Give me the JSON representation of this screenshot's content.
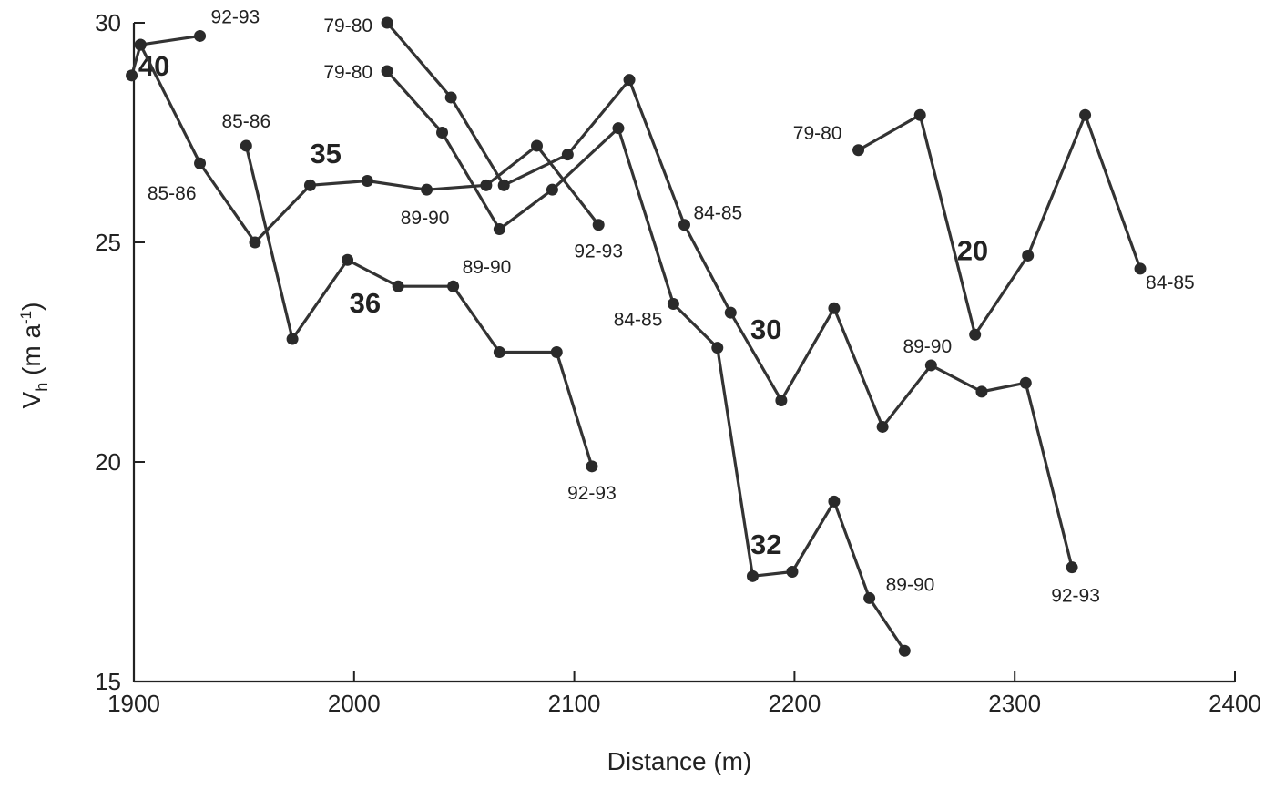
{
  "chart_data": {
    "type": "line",
    "xlabel": "Distance (m)",
    "ylabel": "V",
    "ylabel_sub": "h",
    "ylabel_unit_prefix": " (m a",
    "ylabel_unit_sup": "-1",
    "ylabel_unit_suffix": ")",
    "xlim": [
      1900,
      2400
    ],
    "ylim": [
      15,
      30
    ],
    "xticks": [
      "1900",
      "2000",
      "2100",
      "2200",
      "2300",
      "2400"
    ],
    "yticks": [
      "15",
      "20",
      "25",
      "30"
    ],
    "grid": false,
    "series": [
      {
        "name": "40",
        "x": [
          1899,
          1903,
          1930
        ],
        "y": [
          28.8,
          29.5,
          29.7
        ],
        "point_labels": [
          "",
          "",
          "92-93"
        ]
      },
      {
        "name": "35",
        "x": [
          1903,
          1930,
          1955,
          1980,
          2006,
          2033,
          2060,
          2083,
          2111
        ],
        "y": [
          29.5,
          26.8,
          25.0,
          26.3,
          26.4,
          26.2,
          26.3,
          27.2,
          25.4
        ],
        "point_labels": [
          "",
          "85-86",
          "",
          "",
          "",
          "89-90",
          "",
          "",
          "92-93"
        ]
      },
      {
        "name": "36",
        "x": [
          1951,
          1972,
          1997,
          2020,
          2045,
          2066,
          2092,
          2108
        ],
        "y": [
          27.2,
          22.8,
          24.6,
          24.0,
          24.0,
          22.5,
          22.5,
          19.9
        ],
        "point_labels": [
          "85-86",
          "",
          "",
          "",
          "89-90",
          "",
          "",
          "92-93"
        ]
      },
      {
        "name": "30",
        "x": [
          2015,
          2044,
          2068,
          2097,
          2125,
          2150,
          2171,
          2194,
          2218,
          2240,
          2262,
          2285,
          2305,
          2326
        ],
        "y": [
          30.0,
          28.3,
          26.3,
          27.0,
          28.7,
          25.4,
          23.4,
          21.4,
          23.5,
          20.8,
          22.2,
          21.6,
          21.8,
          17.6
        ],
        "point_labels": [
          "79-80",
          "",
          "",
          "",
          "",
          "84-85",
          "",
          "",
          "",
          "",
          "89-90",
          "",
          "",
          "92-93"
        ]
      },
      {
        "name": "32",
        "x": [
          2015,
          2040,
          2066,
          2090,
          2120,
          2145,
          2165,
          2181,
          2199,
          2218,
          2234,
          2250
        ],
        "y": [
          28.9,
          27.5,
          25.3,
          26.2,
          27.6,
          23.6,
          22.6,
          17.4,
          17.5,
          19.1,
          16.9,
          15.7
        ],
        "point_labels": [
          "79-80",
          "",
          "",
          "",
          "",
          "84-85",
          "",
          "",
          "",
          "",
          "89-90",
          ""
        ]
      },
      {
        "name": "20",
        "x": [
          2229,
          2257,
          2282,
          2306,
          2332,
          2357
        ],
        "y": [
          27.1,
          27.9,
          22.9,
          24.7,
          27.9,
          24.4
        ],
        "point_labels": [
          "79-80",
          "",
          "",
          "",
          "",
          "84-85"
        ]
      }
    ]
  }
}
